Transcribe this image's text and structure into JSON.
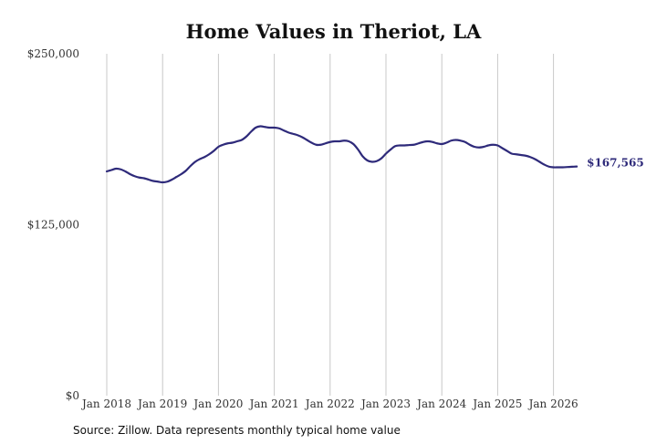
{
  "chart_data": {
    "type": "line",
    "title": "Home Values in Theriot, LA",
    "xlabel": "",
    "ylabel": "",
    "ylim": [
      0,
      250000
    ],
    "y_ticks": [
      0,
      125000,
      250000
    ],
    "y_tick_labels": [
      "$0",
      "$125,000",
      "$250,000"
    ],
    "x_tick_labels": [
      "Jan 2018",
      "Jan 2019",
      "Jan 2020",
      "Jan 2021",
      "Jan 2022",
      "Jan 2023",
      "Jan 2024",
      "Jan 2025",
      "Jan 2026"
    ],
    "grid": "vertical",
    "line_color": "#2e2a7a",
    "series": [
      {
        "x": [
          "2018-01",
          "2018-02",
          "2018-03",
          "2018-04",
          "2018-05",
          "2018-06",
          "2018-07",
          "2018-08",
          "2018-09",
          "2018-10",
          "2018-11",
          "2018-12",
          "2019-01",
          "2019-02",
          "2019-03",
          "2019-04",
          "2019-05",
          "2019-06",
          "2019-07",
          "2019-08",
          "2019-09",
          "2019-10",
          "2019-11",
          "2019-12",
          "2020-01",
          "2020-02",
          "2020-03",
          "2020-04",
          "2020-05",
          "2020-06",
          "2020-07",
          "2020-08",
          "2020-09",
          "2020-10",
          "2020-11",
          "2020-12",
          "2021-01",
          "2021-02",
          "2021-03",
          "2021-04",
          "2021-05",
          "2021-06",
          "2021-07",
          "2021-08",
          "2021-09",
          "2021-10",
          "2021-11",
          "2021-12",
          "2022-01",
          "2022-02",
          "2022-03",
          "2022-04",
          "2022-05",
          "2022-06",
          "2022-07",
          "2022-08",
          "2022-09",
          "2022-10",
          "2022-11",
          "2022-12",
          "2023-01",
          "2023-02",
          "2023-03",
          "2023-04",
          "2023-05",
          "2023-06",
          "2023-07",
          "2023-08",
          "2023-09",
          "2023-10",
          "2023-11",
          "2023-12",
          "2024-01",
          "2024-02",
          "2024-03",
          "2024-04",
          "2024-05",
          "2024-06",
          "2024-07",
          "2024-08",
          "2024-09",
          "2024-10",
          "2024-11",
          "2024-12",
          "2025-01",
          "2025-02",
          "2025-03",
          "2025-04",
          "2025-05",
          "2025-06",
          "2025-07",
          "2025-08",
          "2025-09",
          "2025-10",
          "2025-11",
          "2025-12",
          "2026-01",
          "2026-02",
          "2026-03",
          "2026-04",
          "2026-05",
          "2026-06"
        ],
        "values": [
          164000,
          165000,
          166000,
          165500,
          164000,
          162000,
          160500,
          159500,
          159000,
          158000,
          157000,
          156500,
          156000,
          156500,
          158000,
          160000,
          162000,
          164500,
          168000,
          171000,
          173000,
          174500,
          176500,
          179000,
          182000,
          183500,
          184500,
          185000,
          186000,
          187000,
          189500,
          193000,
          196000,
          197000,
          196500,
          196000,
          196000,
          195500,
          194000,
          192500,
          191500,
          190500,
          189000,
          187000,
          185000,
          183500,
          183500,
          184500,
          185500,
          186000,
          186000,
          186500,
          186000,
          184000,
          180000,
          175000,
          172000,
          171000,
          171500,
          173500,
          177000,
          180000,
          182500,
          183000,
          183000,
          183300,
          183500,
          184500,
          185500,
          186000,
          185500,
          184500,
          184000,
          185000,
          186500,
          187000,
          186500,
          185500,
          183500,
          182000,
          181500,
          182000,
          183000,
          183500,
          183000,
          181000,
          179000,
          177000,
          176500,
          176000,
          175500,
          174500,
          173000,
          171000,
          169000,
          167500,
          167000,
          167000,
          167000,
          167200,
          167400,
          167565
        ]
      }
    ],
    "end_label": "$167,565"
  },
  "source_note": "Source: Zillow. Data represents monthly typical home value"
}
